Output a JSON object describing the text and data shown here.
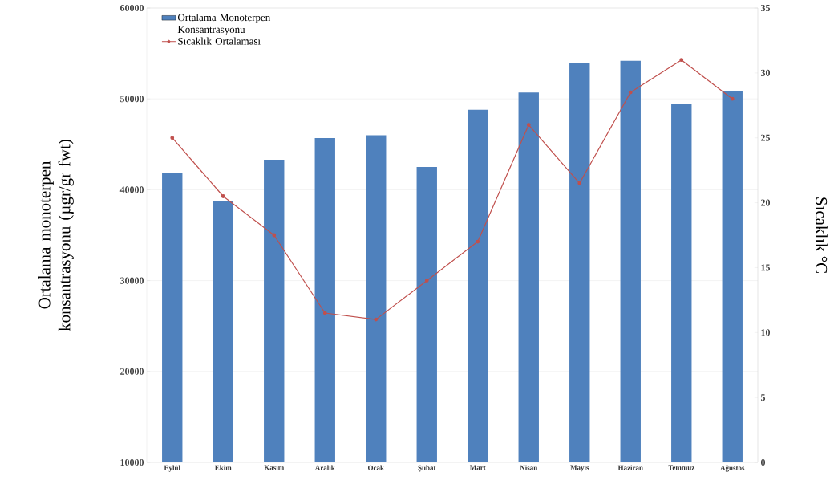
{
  "chart_data": {
    "type": "bar",
    "ylabel": "Ortalama monoterpen konsantrasyonu (µgr/gr fwt)",
    "y2label": "Sıcaklık °C",
    "categories": [
      "Eylül",
      "Ekim",
      "Kasım",
      "Aralık",
      "Ocak",
      "Şubat",
      "Mart",
      "Nisan",
      "Mayıs",
      "Haziran",
      "Temmuz",
      "Ağustos"
    ],
    "series": [
      {
        "name": "Ortalama Monoterpen Konsantrasyonu",
        "color": "#4f81bd",
        "values": [
          41900,
          38800,
          43300,
          45700,
          46000,
          42500,
          48800,
          50700,
          53900,
          54200,
          49400,
          50900
        ]
      },
      {
        "name": "Sıcaklık Ortalaması",
        "type": "line",
        "axis": "y2",
        "color": "#c0504d",
        "marker": "circle",
        "values": [
          25,
          20.5,
          17.5,
          11.5,
          11,
          14,
          17,
          26,
          21.5,
          28.5,
          31,
          28
        ]
      }
    ],
    "ylim": [
      10000,
      60000
    ],
    "yticks": [
      10000,
      20000,
      30000,
      40000,
      50000,
      60000
    ],
    "y2lim": [
      0,
      35
    ],
    "y2ticks": [
      0,
      5,
      10,
      15,
      20,
      25,
      30,
      35
    ],
    "grid": "y",
    "legend": "top left"
  }
}
